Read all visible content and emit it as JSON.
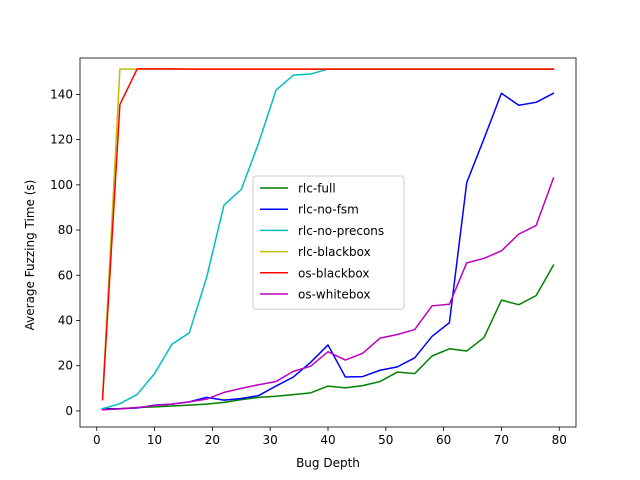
{
  "chart_data": {
    "type": "line",
    "title": "",
    "xlabel": "Bug Depth",
    "ylabel": "Average Fuzzing Time (s)",
    "xlim": [
      -2.9,
      82.9
    ],
    "ylim": [
      -7.1,
      156.1
    ],
    "xticks": [
      0,
      10,
      20,
      30,
      40,
      50,
      60,
      70,
      80
    ],
    "yticks": [
      0,
      20,
      40,
      60,
      80,
      100,
      120,
      140
    ],
    "grid": false,
    "legend_position": "center",
    "series": [
      {
        "name": "rlc-full",
        "color": "#008000",
        "x": [
          1,
          4,
          7,
          10,
          13,
          16,
          19,
          22,
          25,
          28,
          31,
          34,
          37,
          40,
          43,
          46,
          49,
          52,
          55,
          58,
          61,
          64,
          67,
          70,
          73,
          76,
          79
        ],
        "y": [
          1,
          1,
          1.5,
          1.8,
          2.2,
          2.6,
          3,
          3.8,
          5,
          6,
          6.5,
          7.2,
          8,
          11,
          10.2,
          11.2,
          13,
          17.2,
          16.5,
          24.3,
          27.5,
          26.5,
          32.5,
          49,
          47,
          51,
          64.5
        ]
      },
      {
        "name": "rlc-no-fsm",
        "color": "#0000ff",
        "x": [
          1,
          4,
          7,
          10,
          13,
          16,
          19,
          22,
          25,
          28,
          31,
          34,
          37,
          40,
          43,
          46,
          49,
          52,
          55,
          58,
          61,
          64,
          67,
          70,
          73,
          76,
          79
        ],
        "y": [
          0.8,
          1,
          1.3,
          2.6,
          3,
          4,
          6,
          4.8,
          5.5,
          6.8,
          11,
          15,
          21.5,
          29.2,
          15,
          15.2,
          18,
          19.5,
          23.5,
          33,
          39,
          101,
          120.5,
          140.5,
          135.2,
          136.5,
          140.5
        ]
      },
      {
        "name": "rlc-no-precons",
        "color": "#00bfbf",
        "x": [
          1,
          4,
          7,
          10,
          13,
          16,
          19,
          22,
          25,
          28,
          31,
          34,
          37,
          40,
          43,
          46,
          49,
          52,
          55,
          58,
          61,
          64,
          67,
          70,
          73,
          76,
          79
        ],
        "y": [
          1,
          3.2,
          7.3,
          16.5,
          29.5,
          34.5,
          59,
          91,
          98,
          118.5,
          141.8,
          148.5,
          149,
          151.2,
          151.2,
          151.2,
          151.2,
          151.2,
          151.2,
          151.2,
          151.2,
          151.2,
          151.2,
          151.2,
          151.2,
          151.2,
          151.2
        ]
      },
      {
        "name": "rlc-blackbox",
        "color": "#bfbf00",
        "x": [
          1,
          4,
          7,
          10,
          13,
          16,
          19,
          22,
          25,
          28,
          31,
          34,
          37,
          40,
          43,
          46,
          49,
          52,
          55,
          58,
          61,
          64,
          67,
          70,
          73,
          76,
          79
        ],
        "y": [
          5.5,
          151.2,
          151.2,
          151.2,
          151.2,
          151.2,
          151.2,
          151.2,
          151.2,
          151.2,
          151.2,
          151.2,
          151.2,
          151.2,
          151.2,
          151.2,
          151.2,
          151.2,
          151.2,
          151.2,
          151.2,
          151.2,
          151.2,
          151.2,
          151.2,
          151.2,
          151.2
        ]
      },
      {
        "name": "os-blackbox",
        "color": "#ff0000",
        "x": [
          1,
          4,
          7,
          10,
          13,
          16,
          19,
          22,
          25,
          28,
          31,
          34,
          37,
          40,
          43,
          46,
          49,
          52,
          55,
          58,
          61,
          64,
          67,
          70,
          73,
          76,
          79
        ],
        "y": [
          5,
          135.5,
          151.3,
          151.3,
          151.3,
          151.2,
          151.2,
          151.2,
          151.2,
          151.2,
          151.2,
          151.2,
          151.2,
          151.2,
          151.2,
          151.2,
          151.2,
          151.2,
          151.2,
          151.2,
          151.2,
          151.2,
          151.2,
          151.2,
          151.2,
          151.2,
          151.2
        ]
      },
      {
        "name": "os-whitebox",
        "color": "#bf00bf",
        "x": [
          1,
          4,
          7,
          10,
          13,
          16,
          19,
          22,
          25,
          28,
          31,
          34,
          37,
          40,
          43,
          46,
          49,
          52,
          55,
          58,
          61,
          64,
          67,
          70,
          73,
          76,
          79
        ],
        "y": [
          0.5,
          0.9,
          1.5,
          2.4,
          3,
          4,
          5.2,
          8.2,
          10,
          11.6,
          13,
          17.5,
          19.8,
          26.2,
          22.5,
          25.5,
          32.2,
          33.8,
          36,
          46.5,
          47.2,
          65.5,
          67.5,
          70.8,
          78.2,
          82,
          103
        ]
      }
    ]
  }
}
